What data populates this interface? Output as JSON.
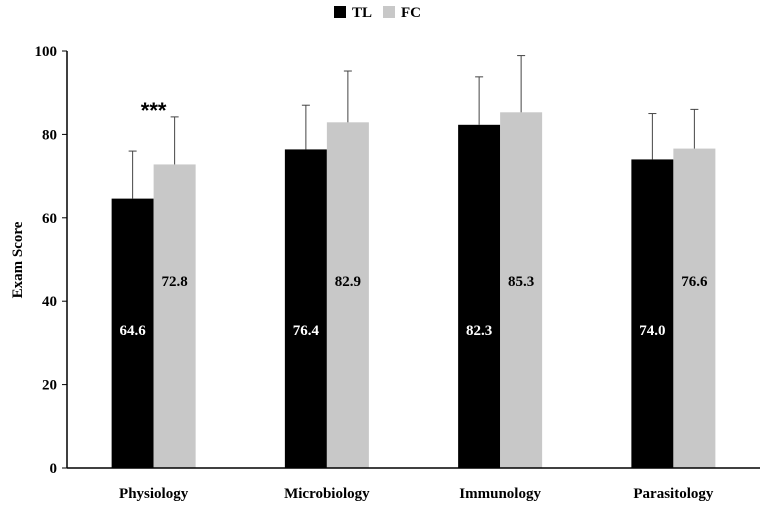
{
  "chart_data": {
    "type": "bar",
    "title": "",
    "xlabel": "",
    "ylabel": "Exam Score",
    "ylim": [
      0,
      100
    ],
    "yticks": [
      0,
      20,
      40,
      60,
      80,
      100
    ],
    "grid": false,
    "legend_position": "top-center",
    "categories": [
      "Physiology",
      "Microbiology",
      "Immunology",
      "Parasitology"
    ],
    "series": [
      {
        "name": "TL",
        "color": "#000000",
        "values": [
          64.6,
          76.4,
          82.3,
          74.0
        ],
        "labels": [
          "64.6",
          "76.4",
          "82.3",
          "74.0"
        ],
        "error_upper": [
          76.0,
          87.0,
          93.8,
          85.0
        ]
      },
      {
        "name": "FC",
        "color": "#c8c8c8",
        "values": [
          72.8,
          82.9,
          85.3,
          76.6
        ],
        "labels": [
          "72.8",
          "82.9",
          "85.3",
          "76.6"
        ],
        "error_upper": [
          84.2,
          95.2,
          98.9,
          86.0
        ]
      }
    ],
    "annotations": [
      {
        "category": "Physiology",
        "text": "***"
      }
    ]
  }
}
